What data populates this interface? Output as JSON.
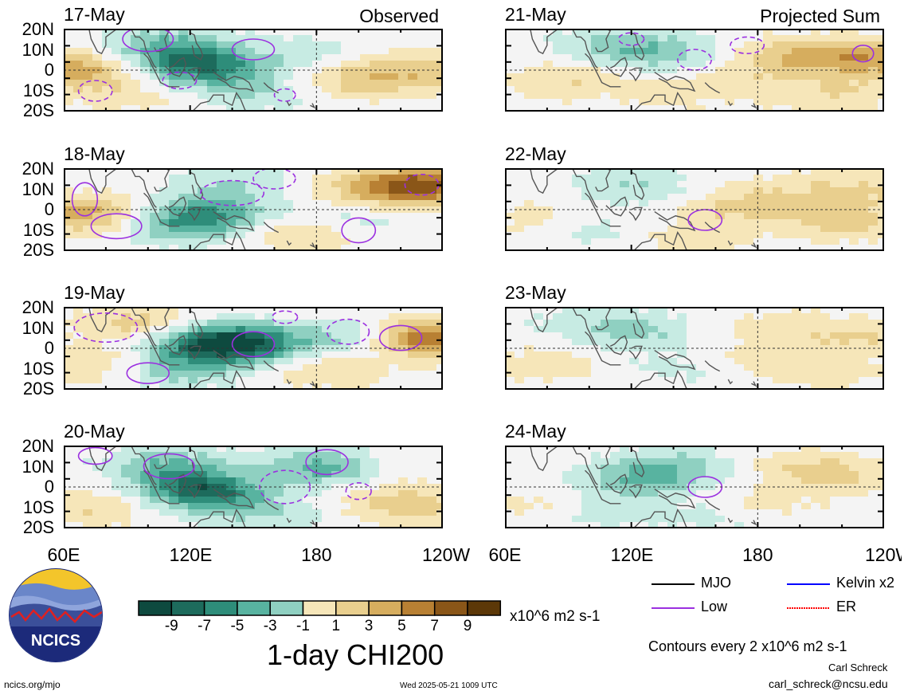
{
  "figure": {
    "col_headers": [
      "Observed",
      "Projected Sum"
    ],
    "panels": [
      {
        "date": "17-May",
        "tag": "Observed"
      },
      {
        "date": "18-May"
      },
      {
        "date": "19-May"
      },
      {
        "date": "20-May"
      },
      {
        "date": "21-May",
        "tag": "Projected Sum"
      },
      {
        "date": "22-May"
      },
      {
        "date": "23-May"
      },
      {
        "date": "24-May"
      }
    ],
    "lat_labels": [
      "20N",
      "10N",
      "0",
      "10S",
      "20S"
    ],
    "lon_labels": [
      "60E",
      "120E",
      "180",
      "120W"
    ],
    "colorbar": {
      "ticks": [
        "-9",
        "-7",
        "-5",
        "-3",
        "-1",
        "1",
        "3",
        "5",
        "7",
        "9"
      ],
      "colors": [
        "#0e4a3f",
        "#1d6b5c",
        "#2e8d7a",
        "#58b3a0",
        "#8fd0c1",
        "#c7ebe3",
        "#f4f4f4",
        "#f6e6b9",
        "#e9cf8e",
        "#d6ad5e",
        "#b88033",
        "#8a5618",
        "#5c3808"
      ],
      "units": "x10^6 m2 s-1",
      "title": "1-day CHI200"
    },
    "legend": {
      "items": [
        {
          "label": "MJO",
          "color": "#000000"
        },
        {
          "label": "Kelvin x2",
          "color": "#0000ff"
        },
        {
          "label": "Low",
          "color": "#9b30e0"
        },
        {
          "label": "ER",
          "color": "#ff0000"
        }
      ],
      "contour_note": "Contours every 2 x10^6 m2 s-1"
    },
    "logo_text": "NCICS",
    "credits": {
      "site": "ncics.org/mjo",
      "timestamp": "Wed 2025-05-21 1009 UTC",
      "author": "Carl Schreck",
      "email": "carl_schreck@ncsu.edu"
    }
  },
  "chart_data": {
    "type": "heatmap",
    "title": "1-day CHI200",
    "units": "x10^6 m2 s-1",
    "contour_interval": 2,
    "panel_dates_observed": [
      "17-May",
      "18-May",
      "19-May",
      "20-May"
    ],
    "panel_dates_projected": [
      "21-May",
      "22-May",
      "23-May",
      "24-May"
    ],
    "lon_range": [
      60,
      240
    ],
    "lat_range": [
      -20,
      20
    ],
    "color_levels": [
      -11,
      -9,
      -7,
      -5,
      -3,
      -1,
      1,
      3,
      5,
      7,
      9,
      11
    ],
    "contour_series": [
      "MJO",
      "Kelvin x2",
      "Low",
      "ER"
    ]
  }
}
